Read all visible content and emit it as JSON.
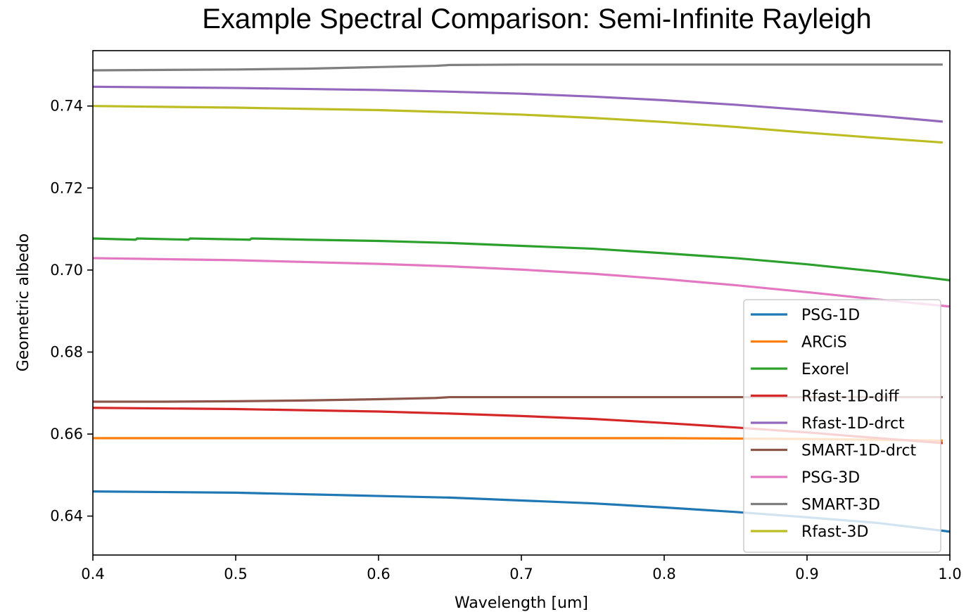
{
  "chart_data": {
    "type": "line",
    "title": "Example Spectral Comparison: Semi-Infinite Rayleigh",
    "xlabel": "Wavelength [um]",
    "ylabel": "Geometric albedo",
    "xlim": [
      0.4,
      1.0
    ],
    "ylim": [
      0.6305,
      0.7535
    ],
    "xticks": [
      0.4,
      0.5,
      0.6,
      0.7,
      0.8,
      0.9,
      1.0
    ],
    "xtick_labels": [
      "0.4",
      "0.5",
      "0.6",
      "0.7",
      "0.8",
      "0.9",
      "1.0"
    ],
    "yticks": [
      0.64,
      0.66,
      0.68,
      0.7,
      0.72,
      0.74
    ],
    "ytick_labels": [
      "0.64",
      "0.66",
      "0.68",
      "0.70",
      "0.72",
      "0.74"
    ],
    "grid": false,
    "legend_position": "lower-right",
    "series": [
      {
        "name": "PSG-1D",
        "color": "#1f77b4",
        "x": [
          0.4,
          0.5,
          0.6,
          0.65,
          0.7,
          0.75,
          0.8,
          0.85,
          0.9,
          0.95,
          1.0
        ],
        "y": [
          0.646,
          0.6457,
          0.6449,
          0.6445,
          0.6438,
          0.6431,
          0.6421,
          0.641,
          0.6397,
          0.6383,
          0.6362
        ]
      },
      {
        "name": "ARCiS",
        "color": "#ff7f0e",
        "x": [
          0.4,
          0.5,
          0.6,
          0.7,
          0.8,
          0.9,
          0.97,
          0.995
        ],
        "y": [
          0.659,
          0.659,
          0.659,
          0.659,
          0.659,
          0.6588,
          0.6585,
          0.6584
        ]
      },
      {
        "name": "Exorel",
        "color": "#2ca02c",
        "x": [
          0.4,
          0.43,
          0.431,
          0.467,
          0.468,
          0.51,
          0.511,
          0.55,
          0.6,
          0.65,
          0.7,
          0.75,
          0.8,
          0.85,
          0.9,
          0.95,
          1.0
        ],
        "y": [
          0.7077,
          0.7074,
          0.7077,
          0.7074,
          0.7077,
          0.7074,
          0.7077,
          0.7074,
          0.7071,
          0.7066,
          0.7059,
          0.7052,
          0.7041,
          0.7029,
          0.7014,
          0.6996,
          0.6975
        ]
      },
      {
        "name": "Rfast-1D-diff",
        "color": "#d62728",
        "x": [
          0.4,
          0.5,
          0.6,
          0.65,
          0.7,
          0.75,
          0.8,
          0.85,
          0.9,
          0.95,
          0.995
        ],
        "y": [
          0.6664,
          0.6661,
          0.6655,
          0.665,
          0.6644,
          0.6637,
          0.6627,
          0.6616,
          0.6604,
          0.659,
          0.6578
        ]
      },
      {
        "name": "Rfast-1D-drct",
        "color": "#9467bd",
        "x": [
          0.4,
          0.5,
          0.6,
          0.65,
          0.7,
          0.75,
          0.8,
          0.85,
          0.9,
          0.95,
          0.995
        ],
        "y": [
          0.7447,
          0.7444,
          0.7439,
          0.7435,
          0.743,
          0.7423,
          0.7414,
          0.7403,
          0.739,
          0.7376,
          0.7362
        ]
      },
      {
        "name": "SMART-1D-drct",
        "color": "#8c564b",
        "x": [
          0.4,
          0.45,
          0.5,
          0.55,
          0.6,
          0.64,
          0.65,
          0.7,
          0.75,
          0.8,
          0.85,
          0.9,
          0.95,
          0.995
        ],
        "y": [
          0.6679,
          0.6679,
          0.668,
          0.6682,
          0.6685,
          0.6688,
          0.669,
          0.669,
          0.669,
          0.669,
          0.669,
          0.669,
          0.669,
          0.669
        ]
      },
      {
        "name": "PSG-3D",
        "color": "#e377c2",
        "x": [
          0.4,
          0.5,
          0.6,
          0.65,
          0.7,
          0.75,
          0.8,
          0.85,
          0.9,
          0.95,
          1.0
        ],
        "y": [
          0.7029,
          0.7024,
          0.7015,
          0.7009,
          0.7001,
          0.6991,
          0.6978,
          0.6963,
          0.6946,
          0.6928,
          0.6911
        ]
      },
      {
        "name": "SMART-3D",
        "color": "#7f7f7f",
        "x": [
          0.4,
          0.45,
          0.5,
          0.55,
          0.6,
          0.64,
          0.65,
          0.7,
          0.75,
          0.8,
          0.85,
          0.9,
          0.95,
          0.995
        ],
        "y": [
          0.7487,
          0.7488,
          0.7489,
          0.7491,
          0.7495,
          0.7498,
          0.75,
          0.7501,
          0.7501,
          0.7501,
          0.7501,
          0.7501,
          0.7501,
          0.7501
        ]
      },
      {
        "name": "Rfast-3D",
        "color": "#bcbd22",
        "x": [
          0.4,
          0.5,
          0.6,
          0.65,
          0.7,
          0.75,
          0.8,
          0.85,
          0.9,
          0.95,
          0.995
        ],
        "y": [
          0.74,
          0.7396,
          0.739,
          0.7385,
          0.7379,
          0.7371,
          0.7361,
          0.7349,
          0.7335,
          0.7322,
          0.7311
        ]
      }
    ]
  }
}
